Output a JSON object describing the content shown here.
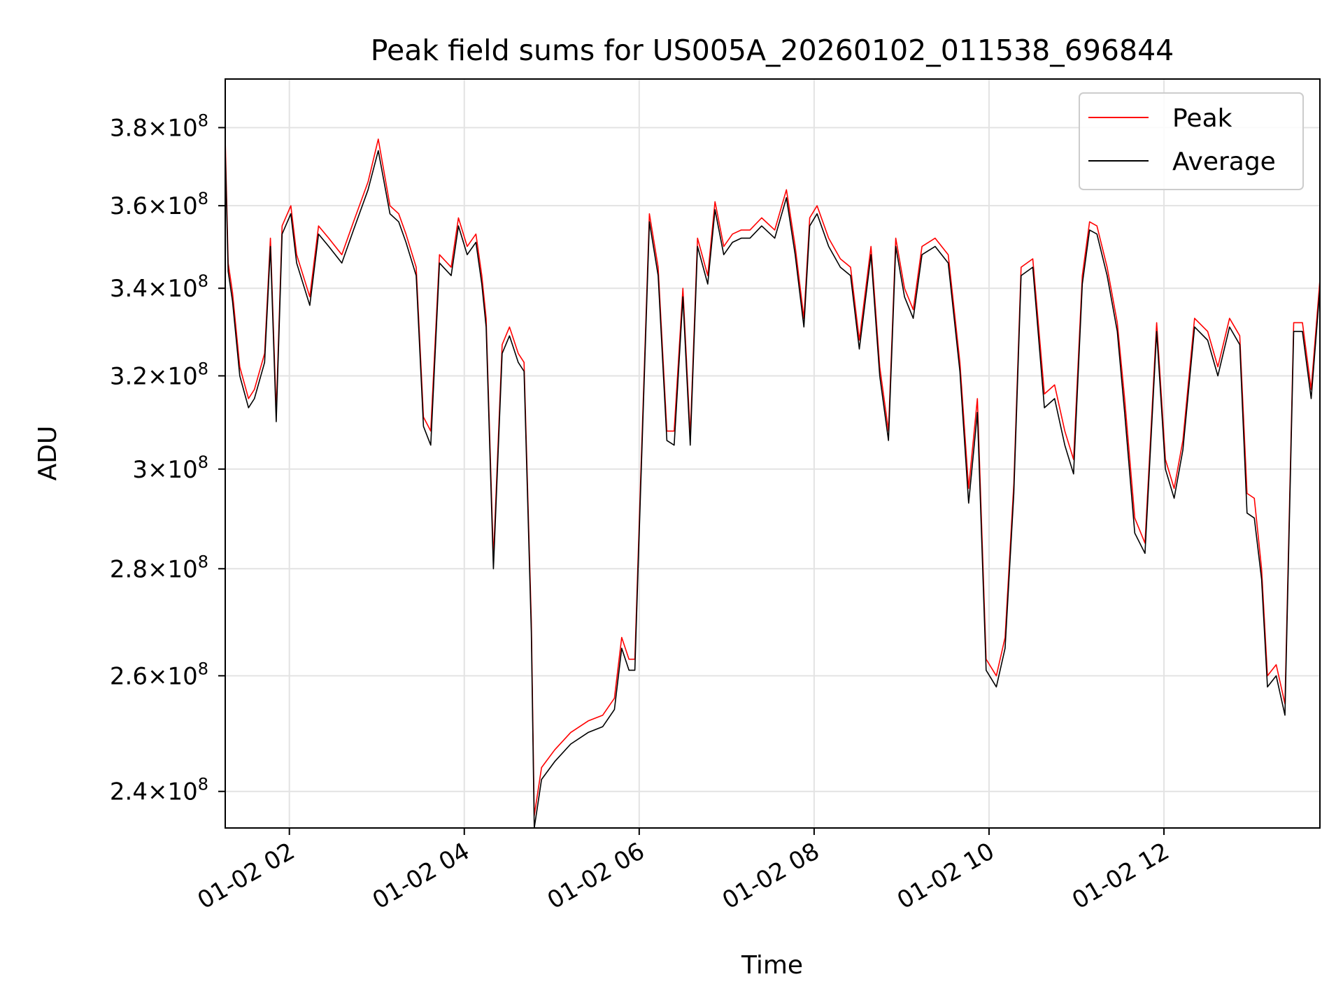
{
  "chart_data": {
    "type": "line",
    "title": "Peak field sums for US005A_20260102_011538_696844",
    "xlabel": "Time",
    "ylabel": "ADU",
    "yscale": "log",
    "grid": true,
    "legend_position": "top-right",
    "x_range": [
      "2026-01-02 01:16",
      "2026-01-02 13:47"
    ],
    "ylim": [
      234000000,
      393000000
    ],
    "x_ticks": [
      {
        "value": "2026-01-02 02:00",
        "label": "01-02 02"
      },
      {
        "value": "2026-01-02 04:00",
        "label": "01-02 04"
      },
      {
        "value": "2026-01-02 06:00",
        "label": "01-02 06"
      },
      {
        "value": "2026-01-02 08:00",
        "label": "01-02 08"
      },
      {
        "value": "2026-01-02 10:00",
        "label": "01-02 10"
      },
      {
        "value": "2026-01-02 12:00",
        "label": "01-02 12"
      }
    ],
    "y_ticks": [
      {
        "value": 240000000,
        "mantissa": "2.4",
        "exponent": "8"
      },
      {
        "value": 260000000,
        "mantissa": "2.6",
        "exponent": "8"
      },
      {
        "value": 280000000,
        "mantissa": "2.8",
        "exponent": "8"
      },
      {
        "value": 300000000,
        "mantissa": "3",
        "exponent": "8"
      },
      {
        "value": 320000000,
        "mantissa": "3.2",
        "exponent": "8"
      },
      {
        "value": 340000000,
        "mantissa": "3.4",
        "exponent": "8"
      },
      {
        "value": 360000000,
        "mantissa": "3.6",
        "exponent": "8"
      },
      {
        "value": 380000000,
        "mantissa": "3.8",
        "exponent": "8"
      }
    ],
    "x": [
      "2026-01-02 01:16",
      "2026-01-02 01:18",
      "2026-01-02 01:21",
      "2026-01-02 01:26",
      "2026-01-02 01:32",
      "2026-01-02 01:36",
      "2026-01-02 01:43",
      "2026-01-02 01:47",
      "2026-01-02 01:51",
      "2026-01-02 01:55",
      "2026-01-02 02:01",
      "2026-01-02 02:05",
      "2026-01-02 02:14",
      "2026-01-02 02:20",
      "2026-01-02 02:27",
      "2026-01-02 02:36",
      "2026-01-02 02:44",
      "2026-01-02 02:54",
      "2026-01-02 03:01",
      "2026-01-02 03:09",
      "2026-01-02 03:15",
      "2026-01-02 03:20",
      "2026-01-02 03:27",
      "2026-01-02 03:32",
      "2026-01-02 03:37",
      "2026-01-02 03:43",
      "2026-01-02 03:51",
      "2026-01-02 03:56",
      "2026-01-02 04:02",
      "2026-01-02 04:08",
      "2026-01-02 04:12",
      "2026-01-02 04:15",
      "2026-01-02 04:20",
      "2026-01-02 04:26",
      "2026-01-02 04:31",
      "2026-01-02 04:37",
      "2026-01-02 04:41",
      "2026-01-02 04:46",
      "2026-01-02 04:48",
      "2026-01-02 04:53",
      "2026-01-02 05:02",
      "2026-01-02 05:13",
      "2026-01-02 05:25",
      "2026-01-02 05:35",
      "2026-01-02 05:43",
      "2026-01-02 05:48",
      "2026-01-02 05:53",
      "2026-01-02 05:57",
      "2026-01-02 06:01",
      "2026-01-02 06:07",
      "2026-01-02 06:13",
      "2026-01-02 06:19",
      "2026-01-02 06:24",
      "2026-01-02 06:30",
      "2026-01-02 06:35",
      "2026-01-02 06:40",
      "2026-01-02 06:47",
      "2026-01-02 06:52",
      "2026-01-02 06:58",
      "2026-01-02 07:04",
      "2026-01-02 07:10",
      "2026-01-02 07:16",
      "2026-01-02 07:24",
      "2026-01-02 07:33",
      "2026-01-02 07:41",
      "2026-01-02 07:47",
      "2026-01-02 07:53",
      "2026-01-02 07:57",
      "2026-01-02 08:02",
      "2026-01-02 08:10",
      "2026-01-02 08:18",
      "2026-01-02 08:25",
      "2026-01-02 08:31",
      "2026-01-02 08:39",
      "2026-01-02 08:45",
      "2026-01-02 08:51",
      "2026-01-02 08:56",
      "2026-01-02 09:02",
      "2026-01-02 09:08",
      "2026-01-02 09:14",
      "2026-01-02 09:23",
      "2026-01-02 09:32",
      "2026-01-02 09:40",
      "2026-01-02 09:46",
      "2026-01-02 09:52",
      "2026-01-02 09:58",
      "2026-01-02 10:05",
      "2026-01-02 10:11",
      "2026-01-02 10:17",
      "2026-01-02 10:22",
      "2026-01-02 10:30",
      "2026-01-02 10:38",
      "2026-01-02 10:45",
      "2026-01-02 10:52",
      "2026-01-02 10:58",
      "2026-01-02 11:04",
      "2026-01-02 11:09",
      "2026-01-02 11:14",
      "2026-01-02 11:21",
      "2026-01-02 11:28",
      "2026-01-02 11:33",
      "2026-01-02 11:40",
      "2026-01-02 11:47",
      "2026-01-02 11:55",
      "2026-01-02 12:01",
      "2026-01-02 12:07",
      "2026-01-02 12:13",
      "2026-01-02 12:21",
      "2026-01-02 12:30",
      "2026-01-02 12:37",
      "2026-01-02 12:45",
      "2026-01-02 12:52",
      "2026-01-02 12:57",
      "2026-01-02 13:02",
      "2026-01-02 13:07",
      "2026-01-02 13:11",
      "2026-01-02 13:17",
      "2026-01-02 13:23",
      "2026-01-02 13:29",
      "2026-01-02 13:35",
      "2026-01-02 13:41",
      "2026-01-02 13:47"
    ],
    "series": [
      {
        "name": "Peak",
        "color": "#ff0000",
        "values": [
          377000000,
          346000000,
          339000000,
          322000000,
          315000000,
          317000000,
          325000000,
          352000000,
          312000000,
          355000000,
          360000000,
          348000000,
          338000000,
          355000000,
          352000000,
          348000000,
          356000000,
          366000000,
          377000000,
          360000000,
          358000000,
          353000000,
          345000000,
          311000000,
          308000000,
          348000000,
          345000000,
          357000000,
          350000000,
          353000000,
          343000000,
          333000000,
          282000000,
          327000000,
          331000000,
          325000000,
          323000000,
          270000000,
          236000000,
          244000000,
          247000000,
          250000000,
          252000000,
          253000000,
          256000000,
          267000000,
          263000000,
          263000000,
          298000000,
          358000000,
          345000000,
          308000000,
          308000000,
          340000000,
          307000000,
          352000000,
          343000000,
          361000000,
          350000000,
          353000000,
          354000000,
          354000000,
          357000000,
          354000000,
          364000000,
          350000000,
          333000000,
          357000000,
          360000000,
          352000000,
          347000000,
          345000000,
          328000000,
          350000000,
          322000000,
          308000000,
          352000000,
          340000000,
          335000000,
          350000000,
          352000000,
          348000000,
          323000000,
          296000000,
          315000000,
          263000000,
          260000000,
          267000000,
          297000000,
          345000000,
          347000000,
          316000000,
          318000000,
          308000000,
          302000000,
          343000000,
          356000000,
          355000000,
          345000000,
          332000000,
          315000000,
          290000000,
          285000000,
          332000000,
          302000000,
          296000000,
          306000000,
          333000000,
          330000000,
          322000000,
          333000000,
          329000000,
          295000000,
          294000000,
          280000000,
          260000000,
          262000000,
          255000000,
          332000000,
          332000000,
          317000000,
          342000000
        ]
      },
      {
        "name": "Average",
        "color": "#000000",
        "values": [
          374000000,
          344000000,
          337000000,
          320000000,
          313000000,
          315000000,
          323000000,
          350000000,
          310000000,
          353000000,
          358000000,
          346000000,
          336000000,
          353000000,
          350000000,
          346000000,
          354000000,
          364000000,
          374000000,
          358000000,
          356000000,
          351000000,
          343000000,
          309000000,
          305000000,
          346000000,
          343000000,
          355000000,
          348000000,
          351000000,
          341000000,
          331000000,
          280000000,
          325000000,
          329000000,
          323000000,
          321000000,
          268000000,
          234000000,
          242000000,
          245000000,
          248000000,
          250000000,
          251000000,
          254000000,
          265000000,
          261000000,
          261000000,
          296000000,
          356000000,
          343000000,
          306000000,
          305000000,
          338000000,
          305000000,
          350000000,
          341000000,
          359000000,
          348000000,
          351000000,
          352000000,
          352000000,
          355000000,
          352000000,
          362000000,
          348000000,
          331000000,
          355000000,
          358000000,
          350000000,
          345000000,
          343000000,
          326000000,
          348000000,
          320000000,
          306000000,
          350000000,
          338000000,
          333000000,
          348000000,
          350000000,
          346000000,
          321000000,
          293000000,
          312000000,
          261000000,
          258000000,
          265000000,
          295000000,
          343000000,
          345000000,
          313000000,
          315000000,
          305000000,
          299000000,
          341000000,
          354000000,
          353000000,
          343000000,
          330000000,
          312000000,
          287000000,
          283000000,
          330000000,
          300000000,
          294000000,
          304000000,
          331000000,
          328000000,
          320000000,
          331000000,
          327000000,
          291000000,
          290000000,
          278000000,
          258000000,
          260000000,
          253000000,
          330000000,
          330000000,
          315000000,
          340000000
        ]
      }
    ]
  }
}
